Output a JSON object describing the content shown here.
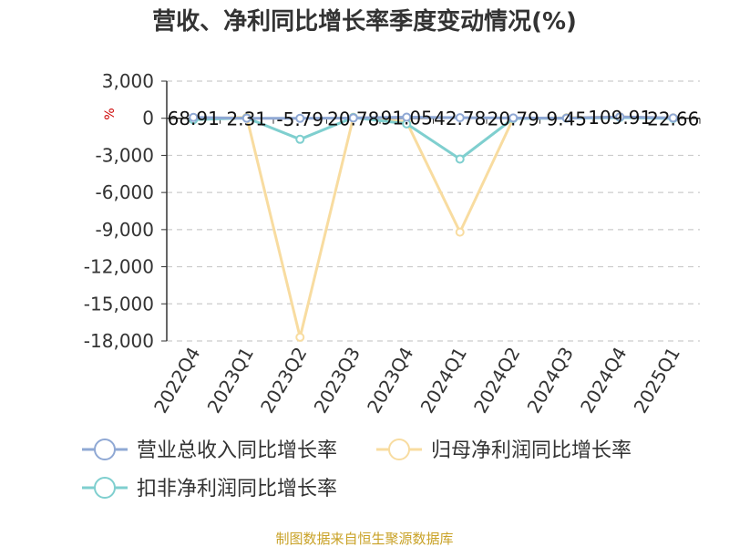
{
  "chart_data": {
    "type": "line",
    "title": "营收、净利同比增长率季度变动情况(%)",
    "ylabel": "%",
    "categories": [
      "2022Q4",
      "2023Q1",
      "2023Q2",
      "2023Q3",
      "2023Q4",
      "2024Q1",
      "2024Q2",
      "2024Q3",
      "2024Q4",
      "2025Q1"
    ],
    "ylim": [
      -18000,
      3000
    ],
    "yticks": [
      3000,
      0,
      -3000,
      -6000,
      -9000,
      -12000,
      -15000,
      -18000
    ],
    "ytick_labels": [
      "3,000",
      "0",
      "-3,000",
      "-6,000",
      "-9,000",
      "-12,000",
      "-15,000",
      "-18,000"
    ],
    "grid": true,
    "legend_position": "bottom",
    "series": [
      {
        "name": "营业总收入同比增长率",
        "color": "#8fa8d4",
        "values": [
          68.91,
          2.31,
          -5.79,
          20.78,
          91.05,
          42.78,
          20.79,
          9.45,
          109.91,
          22.66
        ],
        "labels": [
          "68.91",
          "2.31",
          "-5.79",
          "20.78",
          "91.05",
          "42.78",
          "20.79",
          "9.45",
          "109.91",
          "22.66"
        ]
      },
      {
        "name": "归母净利润同比增长率",
        "color": "#f8dca0",
        "values": [
          -60,
          80,
          -17700,
          80,
          -300,
          -9200,
          -10,
          40,
          120,
          30
        ]
      },
      {
        "name": "扣非净利润同比增长率",
        "color": "#7fcfcf",
        "values": [
          -120,
          20,
          -1700,
          60,
          -450,
          -3300,
          -20,
          10,
          60,
          -20
        ]
      }
    ],
    "source": "制图数据来自恒生聚源数据库"
  }
}
